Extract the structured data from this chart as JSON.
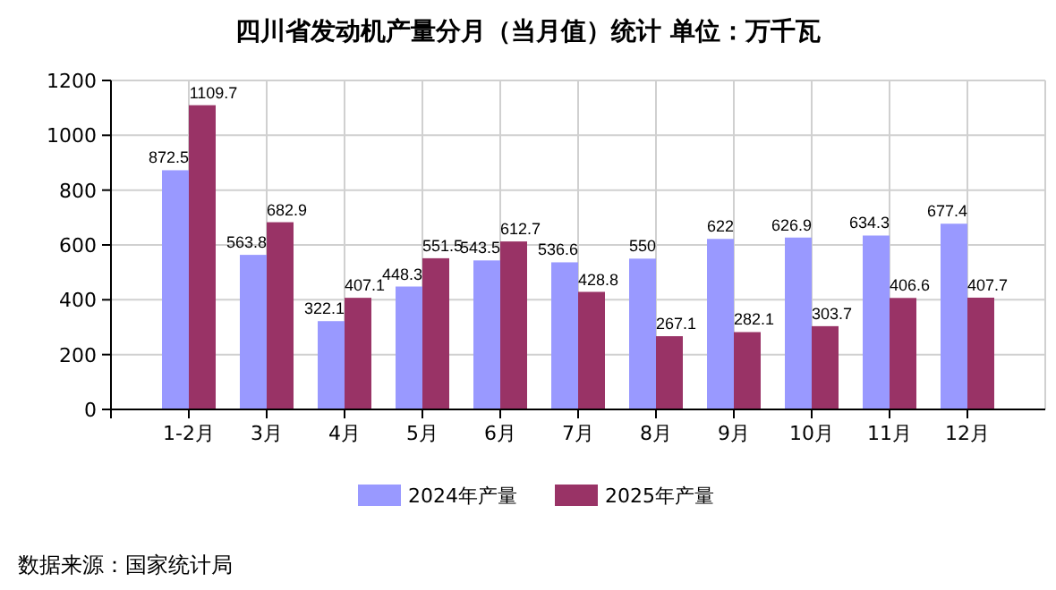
{
  "chart_data": {
    "type": "bar",
    "title": "四川省发动机产量分月（当月值）统计 单位：万千瓦",
    "categories": [
      "1-2月",
      "3月",
      "4月",
      "5月",
      "6月",
      "7月",
      "8月",
      "9月",
      "10月",
      "11月",
      "12月"
    ],
    "series": [
      {
        "name": "2024年产量",
        "color": "#9999ff",
        "values": [
          872.5,
          563.8,
          322.1,
          448.3,
          543.5,
          536.6,
          550,
          622,
          626.9,
          634.3,
          677.4
        ]
      },
      {
        "name": "2025年产量",
        "color": "#993366",
        "values": [
          1109.7,
          682.9,
          407.1,
          551.5,
          612.7,
          428.8,
          267.1,
          282.1,
          303.7,
          406.6,
          407.7
        ]
      }
    ],
    "ylim": [
      0,
      1200
    ],
    "yticks": [
      0,
      200,
      400,
      600,
      800,
      1000,
      1200
    ],
    "grid": true,
    "legend": "bottom",
    "data_labels": true,
    "annotations": [
      "数据来源：国家统计局"
    ]
  }
}
